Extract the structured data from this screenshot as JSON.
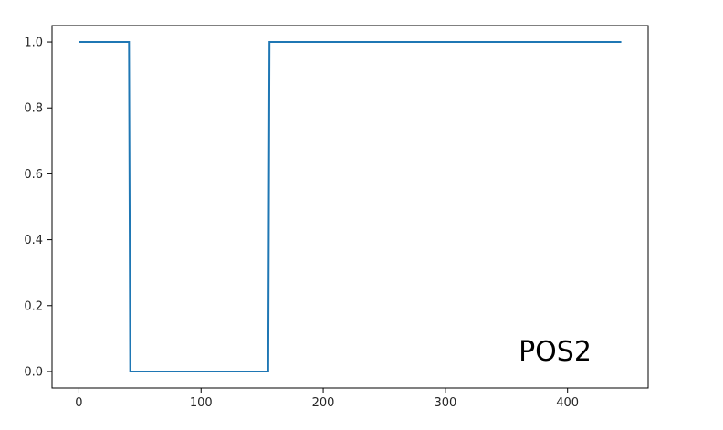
{
  "chart_data": {
    "type": "line",
    "title": "",
    "xlabel": "",
    "ylabel": "",
    "xlim": [
      -22,
      466
    ],
    "ylim": [
      -0.05,
      1.05
    ],
    "grid": false,
    "legend": "none",
    "x_ticks": [
      0,
      100,
      200,
      300,
      400
    ],
    "x_tick_labels": [
      "0",
      "100",
      "200",
      "300",
      "400"
    ],
    "y_ticks": [
      0.0,
      0.2,
      0.4,
      0.6,
      0.8,
      1.0
    ],
    "y_tick_labels": [
      "0.0",
      "0.2",
      "0.4",
      "0.6",
      "0.8",
      "1.0"
    ],
    "series": [
      {
        "color": "#1f77b4",
        "x": [
          0,
          41,
          42,
          155,
          156,
          444
        ],
        "y": [
          1,
          1,
          0,
          0,
          1,
          1
        ]
      }
    ],
    "annotation": "POS2"
  }
}
